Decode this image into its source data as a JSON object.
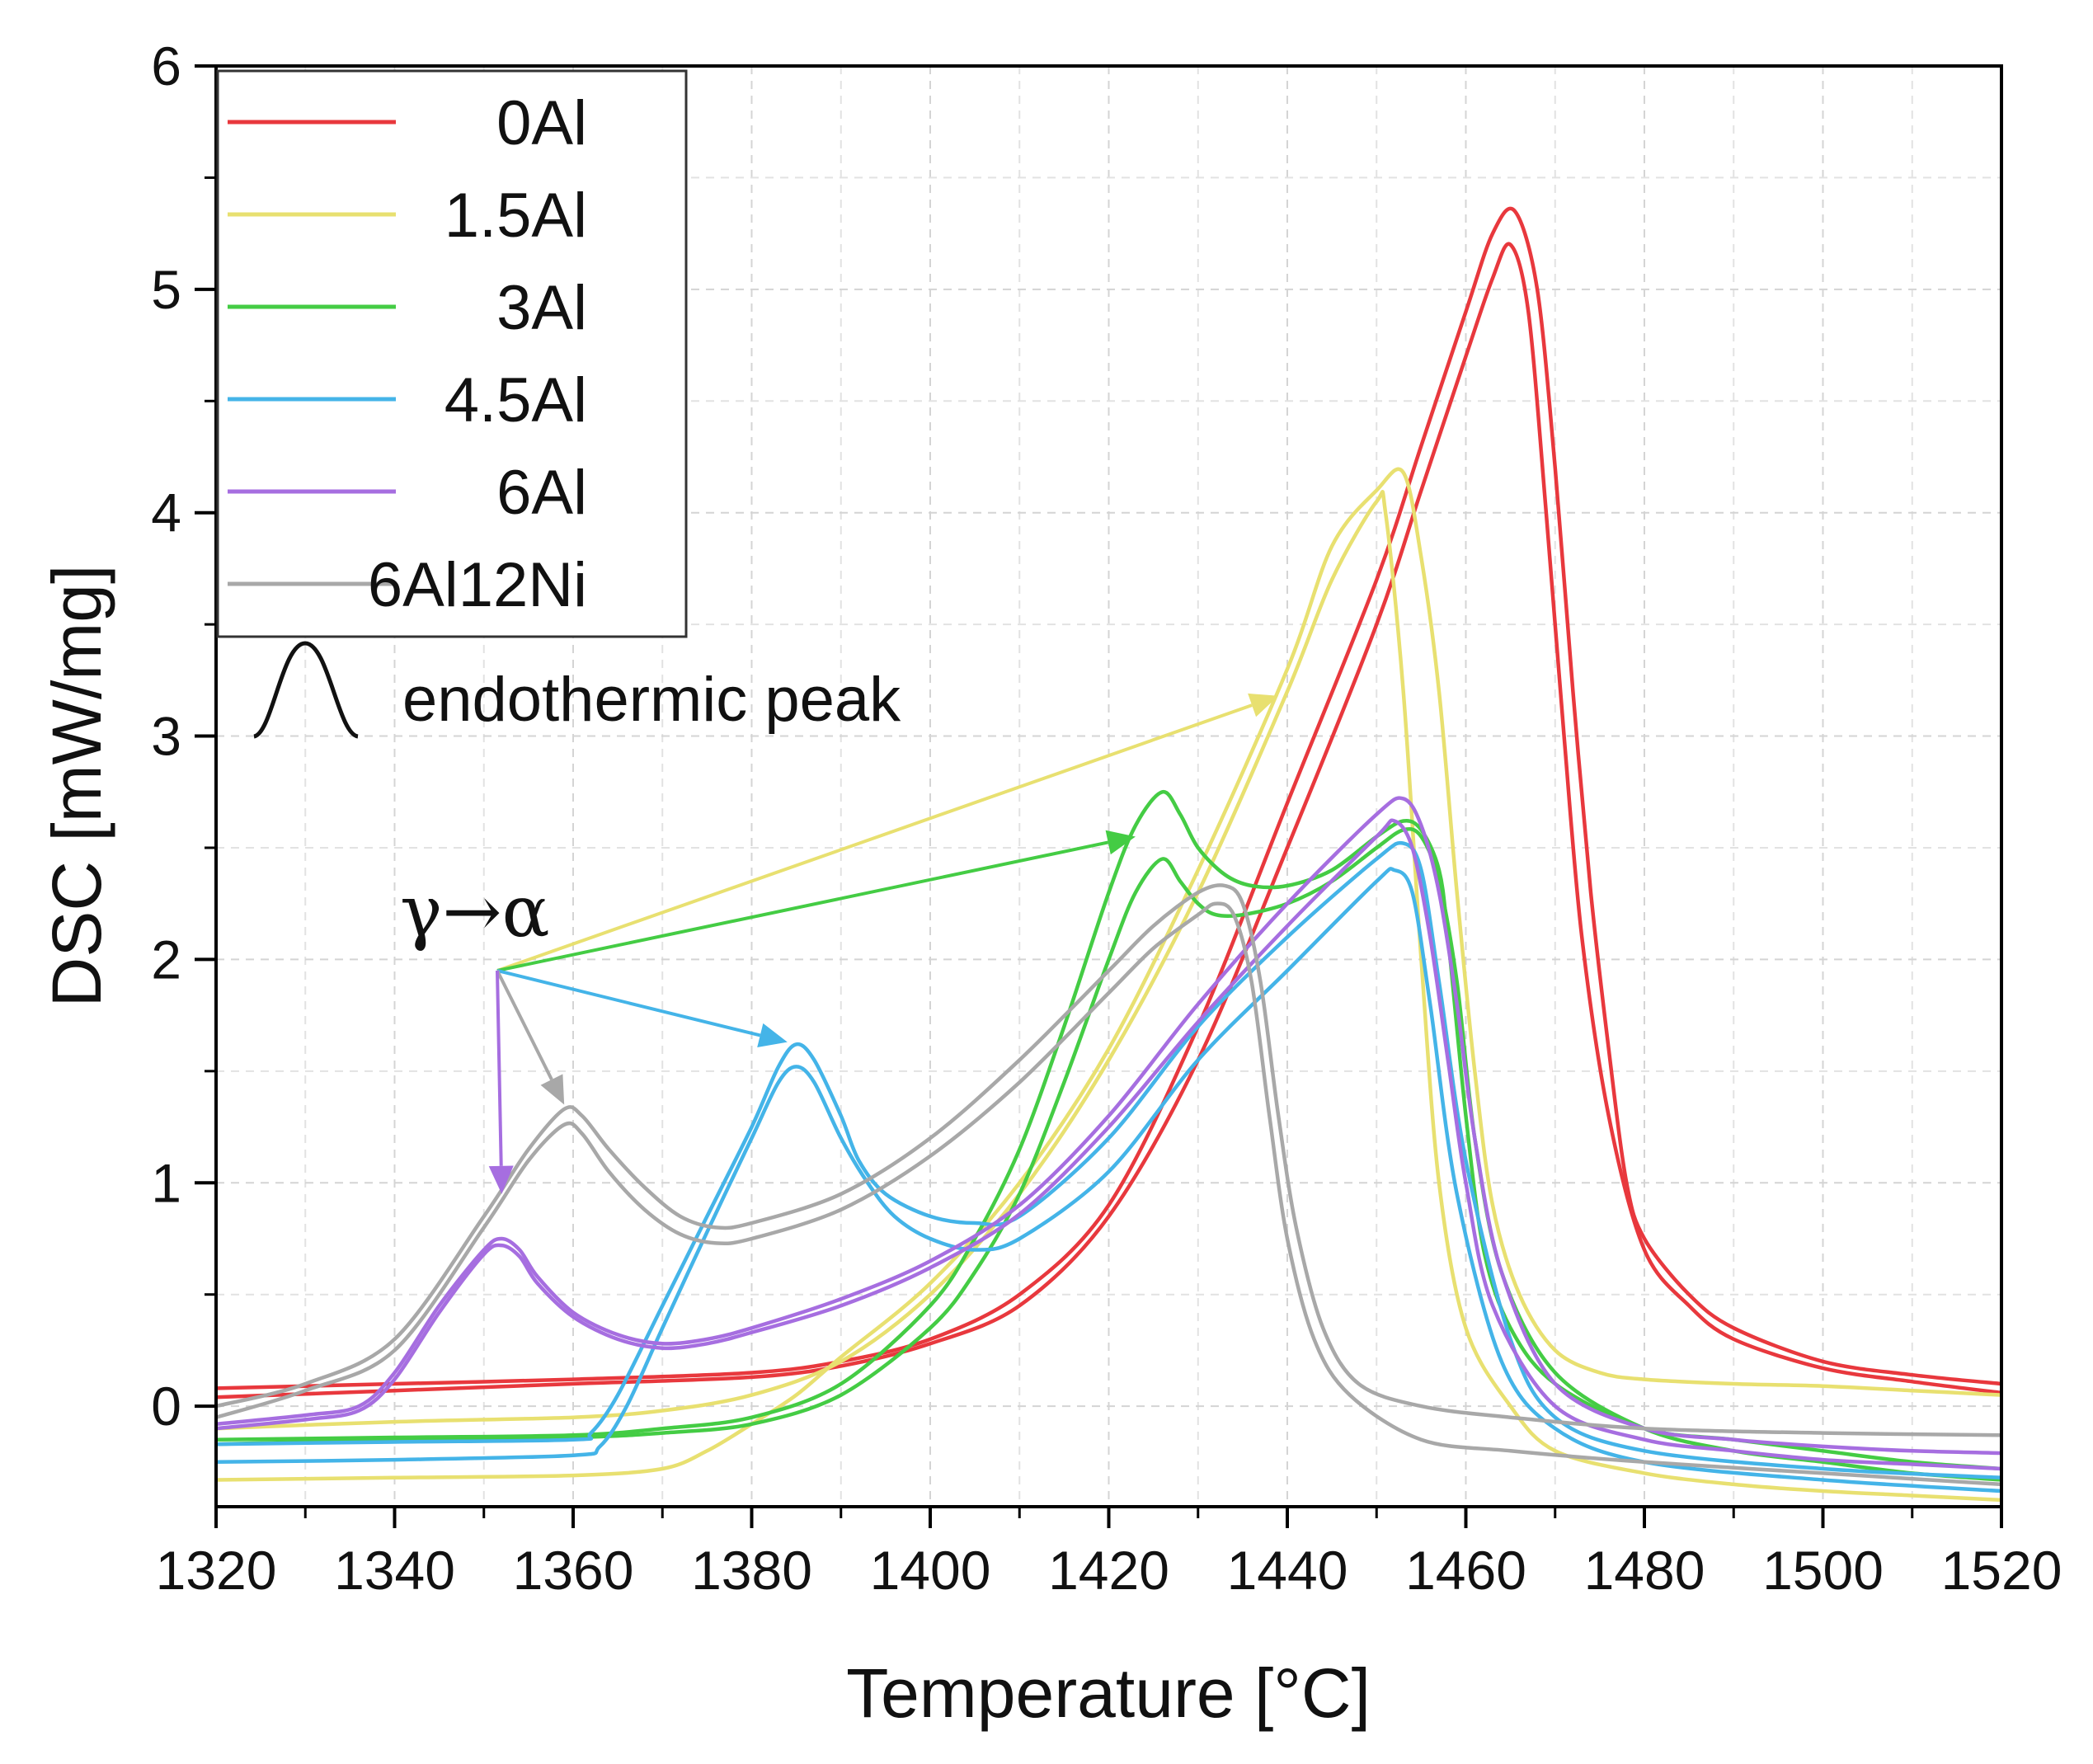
{
  "chart_data": {
    "type": "line",
    "title": "",
    "xlabel": "Temperature [°C]",
    "ylabel": "DSC [mW/mg]",
    "xlim": [
      1320,
      1520
    ],
    "ylim": [
      -0.45,
      6
    ],
    "xticks": [
      "1320",
      "1340",
      "1360",
      "1380",
      "1400",
      "1420",
      "1440",
      "1460",
      "1480",
      "1500",
      "1520"
    ],
    "yticks": [
      "0",
      "1",
      "2",
      "3",
      "4",
      "5",
      "6"
    ],
    "grid": true,
    "legend_position": "top-left",
    "legend_entries": [
      "0Al",
      "1.5Al",
      "3Al",
      "4.5Al",
      "6Al",
      "6Al12Ni"
    ],
    "annotations": {
      "endothermic_symbol": "Λ",
      "endothermic_label": "endothermic peak",
      "transition_label": "γ→α",
      "arrow_origin": [
        1351.5,
        1.95
      ],
      "arrows": [
        {
          "series": "1.5Al",
          "to": [
            1439,
            3.18
          ]
        },
        {
          "series": "3Al",
          "to": [
            1423,
            2.55
          ]
        },
        {
          "series": "4.5Al",
          "to": [
            1384,
            1.63
          ]
        },
        {
          "series": "6Al12Ni",
          "to": [
            1359,
            1.35
          ]
        },
        {
          "series": "6Al",
          "to": [
            1352,
            0.95
          ]
        }
      ]
    },
    "series": [
      {
        "name": "0Al",
        "color": "#e8383d",
        "curves": [
          {
            "x": [
              1320,
              1340,
              1360,
              1380,
              1390,
              1400,
              1410,
              1420,
              1430,
              1440,
              1450,
              1455,
              1460,
              1463,
              1465.5,
              1468,
              1470,
              1472,
              1474,
              1476,
              1478,
              1480,
              1485,
              1490,
              1500,
              1510,
              1520
            ],
            "y": [
              0.08,
              0.1,
              0.12,
              0.15,
              0.2,
              0.3,
              0.5,
              0.9,
              1.7,
              2.7,
              3.7,
              4.3,
              4.9,
              5.25,
              5.35,
              5.0,
              4.2,
              3.2,
              2.3,
              1.6,
              1.0,
              0.75,
              0.5,
              0.35,
              0.2,
              0.14,
              0.1
            ]
          },
          {
            "x": [
              1320,
              1340,
              1360,
              1380,
              1390,
              1400,
              1410,
              1420,
              1430,
              1440,
              1450,
              1455,
              1460,
              1463,
              1465,
              1467,
              1469,
              1471,
              1473,
              1476,
              1480,
              1485,
              1490,
              1500,
              1510,
              1520
            ],
            "y": [
              0.04,
              0.07,
              0.1,
              0.13,
              0.18,
              0.28,
              0.45,
              0.85,
              1.55,
              2.5,
              3.5,
              4.1,
              4.7,
              5.05,
              5.2,
              4.9,
              4.0,
              3.0,
              2.1,
              1.3,
              0.7,
              0.45,
              0.3,
              0.17,
              0.11,
              0.06
            ]
          }
        ]
      },
      {
        "name": "1.5Al",
        "color": "#e8e070",
        "curves": [
          {
            "x": [
              1320,
              1340,
              1360,
              1370,
              1375,
              1380,
              1385,
              1390,
              1400,
              1410,
              1420,
              1430,
              1440,
              1445,
              1450,
              1453,
              1455,
              1457,
              1459,
              1461,
              1463,
              1466,
              1470,
              1475,
              1480,
              1490,
              1500,
              1510,
              1520
            ],
            "y": [
              -0.33,
              -0.32,
              -0.31,
              -0.28,
              -0.2,
              -0.08,
              0.05,
              0.22,
              0.55,
              1.0,
              1.6,
              2.4,
              3.3,
              3.85,
              4.1,
              4.18,
              3.8,
              3.2,
              2.3,
              1.5,
              0.9,
              0.5,
              0.25,
              0.15,
              0.12,
              0.1,
              0.09,
              0.07,
              0.05
            ]
          },
          {
            "x": [
              1320,
              1340,
              1360,
              1370,
              1380,
              1390,
              1400,
              1410,
              1420,
              1430,
              1440,
              1445,
              1450,
              1451,
              1453,
              1455,
              1457,
              1460,
              1465,
              1470,
              1480,
              1490,
              1500,
              1510,
              1520
            ],
            "y": [
              -0.1,
              -0.07,
              -0.05,
              -0.02,
              0.05,
              0.2,
              0.5,
              0.95,
              1.55,
              2.3,
              3.2,
              3.7,
              4.05,
              4.0,
              3.2,
              2.0,
              1.0,
              0.35,
              0.0,
              -0.2,
              -0.3,
              -0.35,
              -0.38,
              -0.4,
              -0.42
            ]
          }
        ]
      },
      {
        "name": "3Al",
        "color": "#44cc44",
        "curves": [
          {
            "x": [
              1320,
              1340,
              1360,
              1370,
              1380,
              1390,
              1400,
              1405,
              1410,
              1415,
              1420,
              1423,
              1426,
              1428,
              1430,
              1433,
              1436,
              1440,
              1445,
              1450,
              1453,
              1455,
              1457,
              1458,
              1460,
              1462,
              1465,
              1470,
              1480,
              1490,
              1500,
              1510,
              1520
            ],
            "y": [
              -0.15,
              -0.14,
              -0.13,
              -0.1,
              -0.05,
              0.1,
              0.45,
              0.75,
              1.15,
              1.7,
              2.3,
              2.6,
              2.75,
              2.65,
              2.5,
              2.38,
              2.33,
              2.33,
              2.4,
              2.55,
              2.62,
              2.58,
              2.4,
              2.1,
              1.3,
              0.7,
              0.35,
              0.1,
              -0.1,
              -0.15,
              -0.2,
              -0.25,
              -0.28
            ]
          },
          {
            "x": [
              1320,
              1340,
              1360,
              1370,
              1380,
              1390,
              1400,
              1405,
              1410,
              1415,
              1420,
              1423,
              1426,
              1428,
              1430,
              1432,
              1435,
              1440,
              1445,
              1450,
              1453,
              1455,
              1457,
              1459,
              1461,
              1464,
              1470,
              1480,
              1490,
              1500,
              1510,
              1520
            ],
            "y": [
              -0.17,
              -0.15,
              -0.14,
              -0.12,
              -0.08,
              0.05,
              0.35,
              0.6,
              0.95,
              1.45,
              2.0,
              2.3,
              2.45,
              2.35,
              2.25,
              2.2,
              2.2,
              2.25,
              2.35,
              2.5,
              2.58,
              2.55,
              2.35,
              1.9,
              1.2,
              0.6,
              0.15,
              -0.1,
              -0.2,
              -0.25,
              -0.3,
              -0.33
            ]
          }
        ]
      },
      {
        "name": "4.5Al",
        "color": "#44b4e8",
        "curves": [
          {
            "x": [
              1320,
              1340,
              1360,
              1362,
              1365,
              1370,
              1375,
              1380,
              1383,
              1385,
              1387,
              1390,
              1392,
              1395,
              1400,
              1405,
              1410,
              1420,
              1430,
              1440,
              1450,
              1453,
              1455,
              1457,
              1460,
              1465,
              1470,
              1480,
              1500,
              1520
            ],
            "y": [
              -0.17,
              -0.16,
              -0.15,
              -0.12,
              0.05,
              0.45,
              0.85,
              1.25,
              1.52,
              1.62,
              1.55,
              1.3,
              1.1,
              0.95,
              0.85,
              0.82,
              0.85,
              1.2,
              1.7,
              2.1,
              2.45,
              2.52,
              2.4,
              1.9,
              1.1,
              0.3,
              -0.05,
              -0.2,
              -0.28,
              -0.32
            ]
          },
          {
            "x": [
              1320,
              1340,
              1360,
              1363,
              1366,
              1370,
              1375,
              1380,
              1383,
              1385,
              1387,
              1390,
              1393,
              1396,
              1400,
              1405,
              1410,
              1420,
              1430,
              1440,
              1450,
              1452,
              1454,
              1456,
              1459,
              1464,
              1470,
              1480,
              1500,
              1520
            ],
            "y": [
              -0.25,
              -0.24,
              -0.22,
              -0.18,
              0.0,
              0.35,
              0.78,
              1.2,
              1.45,
              1.52,
              1.45,
              1.2,
              1.0,
              0.85,
              0.75,
              0.7,
              0.75,
              1.05,
              1.55,
              1.95,
              2.35,
              2.4,
              2.3,
              1.8,
              0.95,
              0.2,
              -0.1,
              -0.25,
              -0.33,
              -0.38
            ]
          }
        ]
      },
      {
        "name": "6Al",
        "color": "#a66ee0",
        "curves": [
          {
            "x": [
              1320,
              1330,
              1336,
              1340,
              1345,
              1350,
              1352,
              1354,
              1356,
              1360,
              1365,
              1370,
              1375,
              1380,
              1390,
              1400,
              1410,
              1420,
              1430,
              1440,
              1450,
              1453,
              1455,
              1457,
              1459,
              1461,
              1464,
              1470,
              1480,
              1490,
              1500,
              1510,
              1520
            ],
            "y": [
              -0.08,
              -0.04,
              0.0,
              0.15,
              0.45,
              0.7,
              0.75,
              0.7,
              0.58,
              0.42,
              0.32,
              0.28,
              0.3,
              0.35,
              0.48,
              0.65,
              0.9,
              1.3,
              1.8,
              2.25,
              2.65,
              2.72,
              2.6,
              2.3,
              1.8,
              1.2,
              0.6,
              0.1,
              -0.1,
              -0.15,
              -0.18,
              -0.2,
              -0.21
            ]
          },
          {
            "x": [
              1320,
              1330,
              1336,
              1340,
              1345,
              1350,
              1352,
              1354,
              1356,
              1360,
              1365,
              1370,
              1375,
              1380,
              1390,
              1400,
              1410,
              1420,
              1430,
              1440,
              1450,
              1452,
              1454,
              1456,
              1458,
              1460,
              1463,
              1470,
              1480,
              1490,
              1500,
              1510,
              1520
            ],
            "y": [
              -0.1,
              -0.06,
              -0.02,
              0.12,
              0.42,
              0.68,
              0.72,
              0.67,
              0.55,
              0.4,
              0.3,
              0.26,
              0.28,
              0.33,
              0.45,
              0.62,
              0.86,
              1.25,
              1.72,
              2.15,
              2.55,
              2.62,
              2.5,
              2.1,
              1.55,
              1.0,
              0.45,
              0.0,
              -0.15,
              -0.2,
              -0.24,
              -0.26,
              -0.28
            ]
          }
        ]
      },
      {
        "name": "6Al12Ni",
        "color": "#a8a8a8",
        "curves": [
          {
            "x": [
              1320,
              1330,
              1340,
              1350,
              1355,
              1359,
              1361,
              1364,
              1368,
              1372,
              1376,
              1380,
              1390,
              1400,
              1410,
              1420,
              1425,
              1430,
              1433,
              1435,
              1437,
              1439,
              1441,
              1444,
              1448,
              1455,
              1465,
              1480,
              1500,
              1520
            ],
            "y": [
              0.0,
              0.1,
              0.3,
              0.85,
              1.15,
              1.33,
              1.3,
              1.15,
              0.98,
              0.85,
              0.8,
              0.82,
              0.95,
              1.2,
              1.55,
              1.95,
              2.15,
              2.3,
              2.33,
              2.25,
              1.9,
              1.3,
              0.8,
              0.35,
              0.1,
              0.0,
              -0.05,
              -0.1,
              -0.12,
              -0.13
            ]
          },
          {
            "x": [
              1320,
              1330,
              1340,
              1350,
              1355,
              1359,
              1361,
              1364,
              1368,
              1372,
              1376,
              1380,
              1390,
              1400,
              1410,
              1420,
              1425,
              1430,
              1432,
              1434,
              1436,
              1438,
              1440,
              1443,
              1447,
              1455,
              1465,
              1480,
              1500,
              1520
            ],
            "y": [
              -0.05,
              0.07,
              0.25,
              0.8,
              1.1,
              1.26,
              1.22,
              1.05,
              0.88,
              0.77,
              0.73,
              0.75,
              0.88,
              1.12,
              1.45,
              1.85,
              2.05,
              2.2,
              2.25,
              2.2,
              1.9,
              1.3,
              0.75,
              0.3,
              0.05,
              -0.15,
              -0.2,
              -0.25,
              -0.3,
              -0.35
            ]
          }
        ]
      }
    ]
  }
}
